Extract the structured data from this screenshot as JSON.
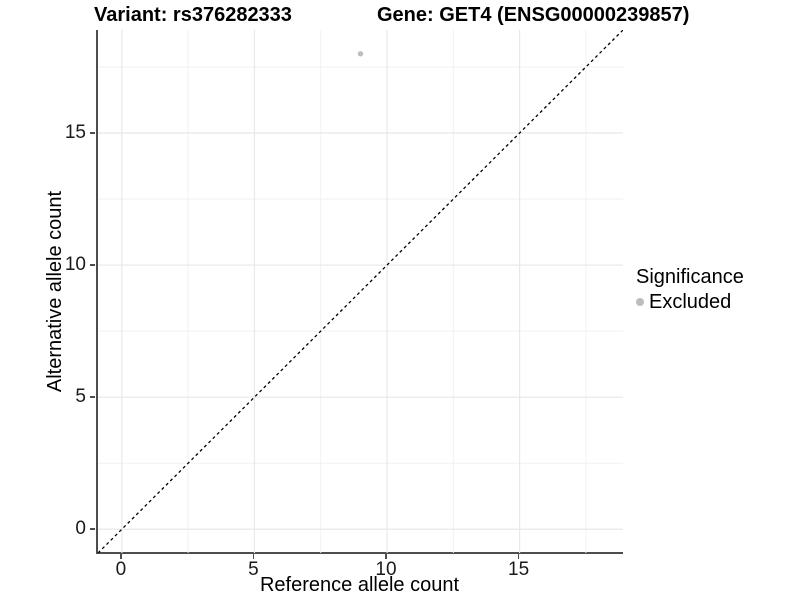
{
  "header": {
    "variant_title": "Variant: rs376282333",
    "gene_title": "Gene: GET4 (ENSG00000239857)"
  },
  "chart_data": {
    "type": "scatter",
    "title": "Variant: rs376282333 | Gene: GET4 (ENSG00000239857)",
    "xlabel": "Reference allele count",
    "ylabel": "Alternative allele count",
    "xlim": [
      -0.9,
      18.9
    ],
    "ylim": [
      -0.9,
      18.9
    ],
    "x_ticks": [
      0,
      5,
      10,
      15
    ],
    "y_ticks": [
      0,
      5,
      10,
      15
    ],
    "x_minor_ticks": [
      2.5,
      7.5,
      12.5,
      17.5
    ],
    "y_minor_ticks": [
      2.5,
      7.5,
      12.5,
      17.5
    ],
    "grid": "major+minor",
    "series": [
      {
        "name": "Excluded",
        "color": "#bdbdbd",
        "marker": "circle",
        "points": [
          [
            9,
            18
          ]
        ]
      }
    ],
    "reference_line": {
      "style": "dashed",
      "color": "#000000",
      "equation": "y = x",
      "from": [
        -0.9,
        -0.9
      ],
      "to": [
        18.9,
        18.9
      ]
    },
    "legend": {
      "title": "Significance",
      "position": "right",
      "entries": [
        {
          "label": "Excluded",
          "color": "#bdbdbd"
        }
      ]
    }
  },
  "colors": {
    "background": "#ffffff",
    "axis_line": "#4d4d4d",
    "tick_text": "#1a1a1a",
    "grid_major": "#e8e8e8",
    "grid_minor": "#f2f2f2",
    "point": "#bdbdbd"
  }
}
